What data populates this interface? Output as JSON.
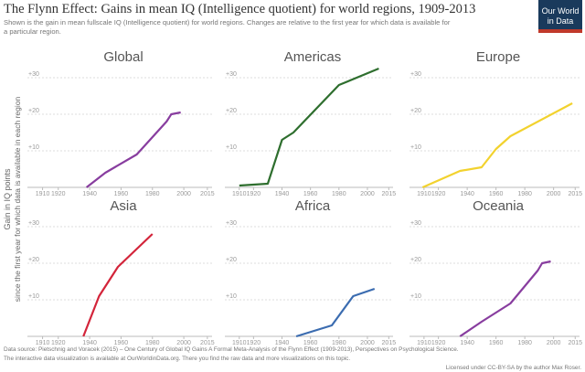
{
  "header": {
    "title": "The Flynn Effect: Gains in mean IQ (Intelligence quotient) for world regions, 1909-2013",
    "subtitle_lines": [
      "Shown is the gain in mean fullscale IQ (Intelligence quotient) for world regions. Changes are relative to the first year for which data is available for",
      "a particular region."
    ],
    "logo_lines": [
      "Our World",
      "in Data"
    ]
  },
  "y_axis_label_lines": [
    "Gain in IQ points",
    "since the first year for which data is available in each region"
  ],
  "footer": {
    "source": "Data source: Pietschnig and Voracek (2015) – One Century of Global IQ Gains A Formal Meta-Analysis of the Flynn Effect (1909-2013), Perspectives on Psychological Science.",
    "note": "The interactive data visualization is available at OurWorldinData.org. There you find the raw data and more visualizations on this topic.",
    "license": "Licensed under CC-BY-SA by the author Max Roser."
  },
  "chart_data": [
    {
      "type": "line",
      "title": "Global",
      "color": "#883d9f",
      "x": [
        1938,
        1950,
        1970,
        1989,
        1992,
        1998
      ],
      "values": [
        0,
        4,
        9,
        18,
        20,
        20.5
      ],
      "xlim": [
        1905,
        2018
      ],
      "ylim": [
        0,
        34
      ],
      "xticks": [
        1910,
        1920,
        1940,
        1960,
        1980,
        2000,
        2015
      ],
      "yticks": [
        {
          "value": 10,
          "label": "+10"
        },
        {
          "value": 20,
          "label": "+20"
        },
        {
          "value": 30,
          "label": "+30"
        }
      ],
      "grid": true
    },
    {
      "type": "line",
      "title": "Americas",
      "color": "#2e6e2e",
      "x": [
        1910,
        1930,
        1940,
        1948,
        1980,
        2008
      ],
      "values": [
        0.5,
        1,
        13,
        15,
        28,
        32.5
      ],
      "xlim": [
        1905,
        2018
      ],
      "ylim": [
        0,
        34
      ],
      "xticks": [
        1910,
        1920,
        1940,
        1960,
        1980,
        2000,
        2015
      ],
      "yticks": [
        {
          "value": 10,
          "label": "+10"
        },
        {
          "value": 20,
          "label": "+20"
        },
        {
          "value": 30,
          "label": "+30"
        }
      ],
      "grid": true
    },
    {
      "type": "line",
      "title": "Europe",
      "color": "#f2d22e",
      "x": [
        1909,
        1935,
        1950,
        1960,
        1970,
        2013
      ],
      "values": [
        0,
        4.5,
        5.5,
        10.5,
        14,
        23
      ],
      "xlim": [
        1905,
        2018
      ],
      "ylim": [
        0,
        34
      ],
      "xticks": [
        1910,
        1920,
        1940,
        1960,
        1980,
        2000,
        2015
      ],
      "yticks": [
        {
          "value": 10,
          "label": "+10"
        },
        {
          "value": 20,
          "label": "+20"
        },
        {
          "value": 30,
          "label": "+30"
        }
      ],
      "grid": true
    },
    {
      "type": "line",
      "title": "Asia",
      "color": "#d3243a",
      "x": [
        1936,
        1946,
        1958,
        1980
      ],
      "values": [
        0,
        11,
        19,
        28
      ],
      "xlim": [
        1905,
        2018
      ],
      "ylim": [
        0,
        34
      ],
      "xticks": [
        1910,
        1920,
        1940,
        1960,
        1980,
        2000,
        2015
      ],
      "yticks": [
        {
          "value": 10,
          "label": "+10"
        },
        {
          "value": 20,
          "label": "+20"
        },
        {
          "value": 30,
          "label": "+30"
        }
      ],
      "grid": true
    },
    {
      "type": "line",
      "title": "Africa",
      "color": "#3b6cb0",
      "x": [
        1950,
        1975,
        1990,
        2005
      ],
      "values": [
        0,
        3,
        11,
        13
      ],
      "xlim": [
        1905,
        2018
      ],
      "ylim": [
        0,
        34
      ],
      "xticks": [
        1910,
        1920,
        1940,
        1960,
        1980,
        2000,
        2015
      ],
      "yticks": [
        {
          "value": 10,
          "label": "+10"
        },
        {
          "value": 20,
          "label": "+20"
        },
        {
          "value": 30,
          "label": "+30"
        }
      ],
      "grid": true
    },
    {
      "type": "line",
      "title": "Oceania",
      "color": "#883d9f",
      "x": [
        1935,
        1950,
        1970,
        1989,
        1992,
        1998
      ],
      "values": [
        0,
        4,
        9,
        18,
        20,
        20.5
      ],
      "xlim": [
        1905,
        2018
      ],
      "ylim": [
        0,
        34
      ],
      "xticks": [
        1910,
        1920,
        1940,
        1960,
        1980,
        2000,
        2015
      ],
      "yticks": [
        {
          "value": 10,
          "label": "+10"
        },
        {
          "value": 20,
          "label": "+20"
        },
        {
          "value": 30,
          "label": "+30"
        }
      ],
      "grid": true
    }
  ]
}
